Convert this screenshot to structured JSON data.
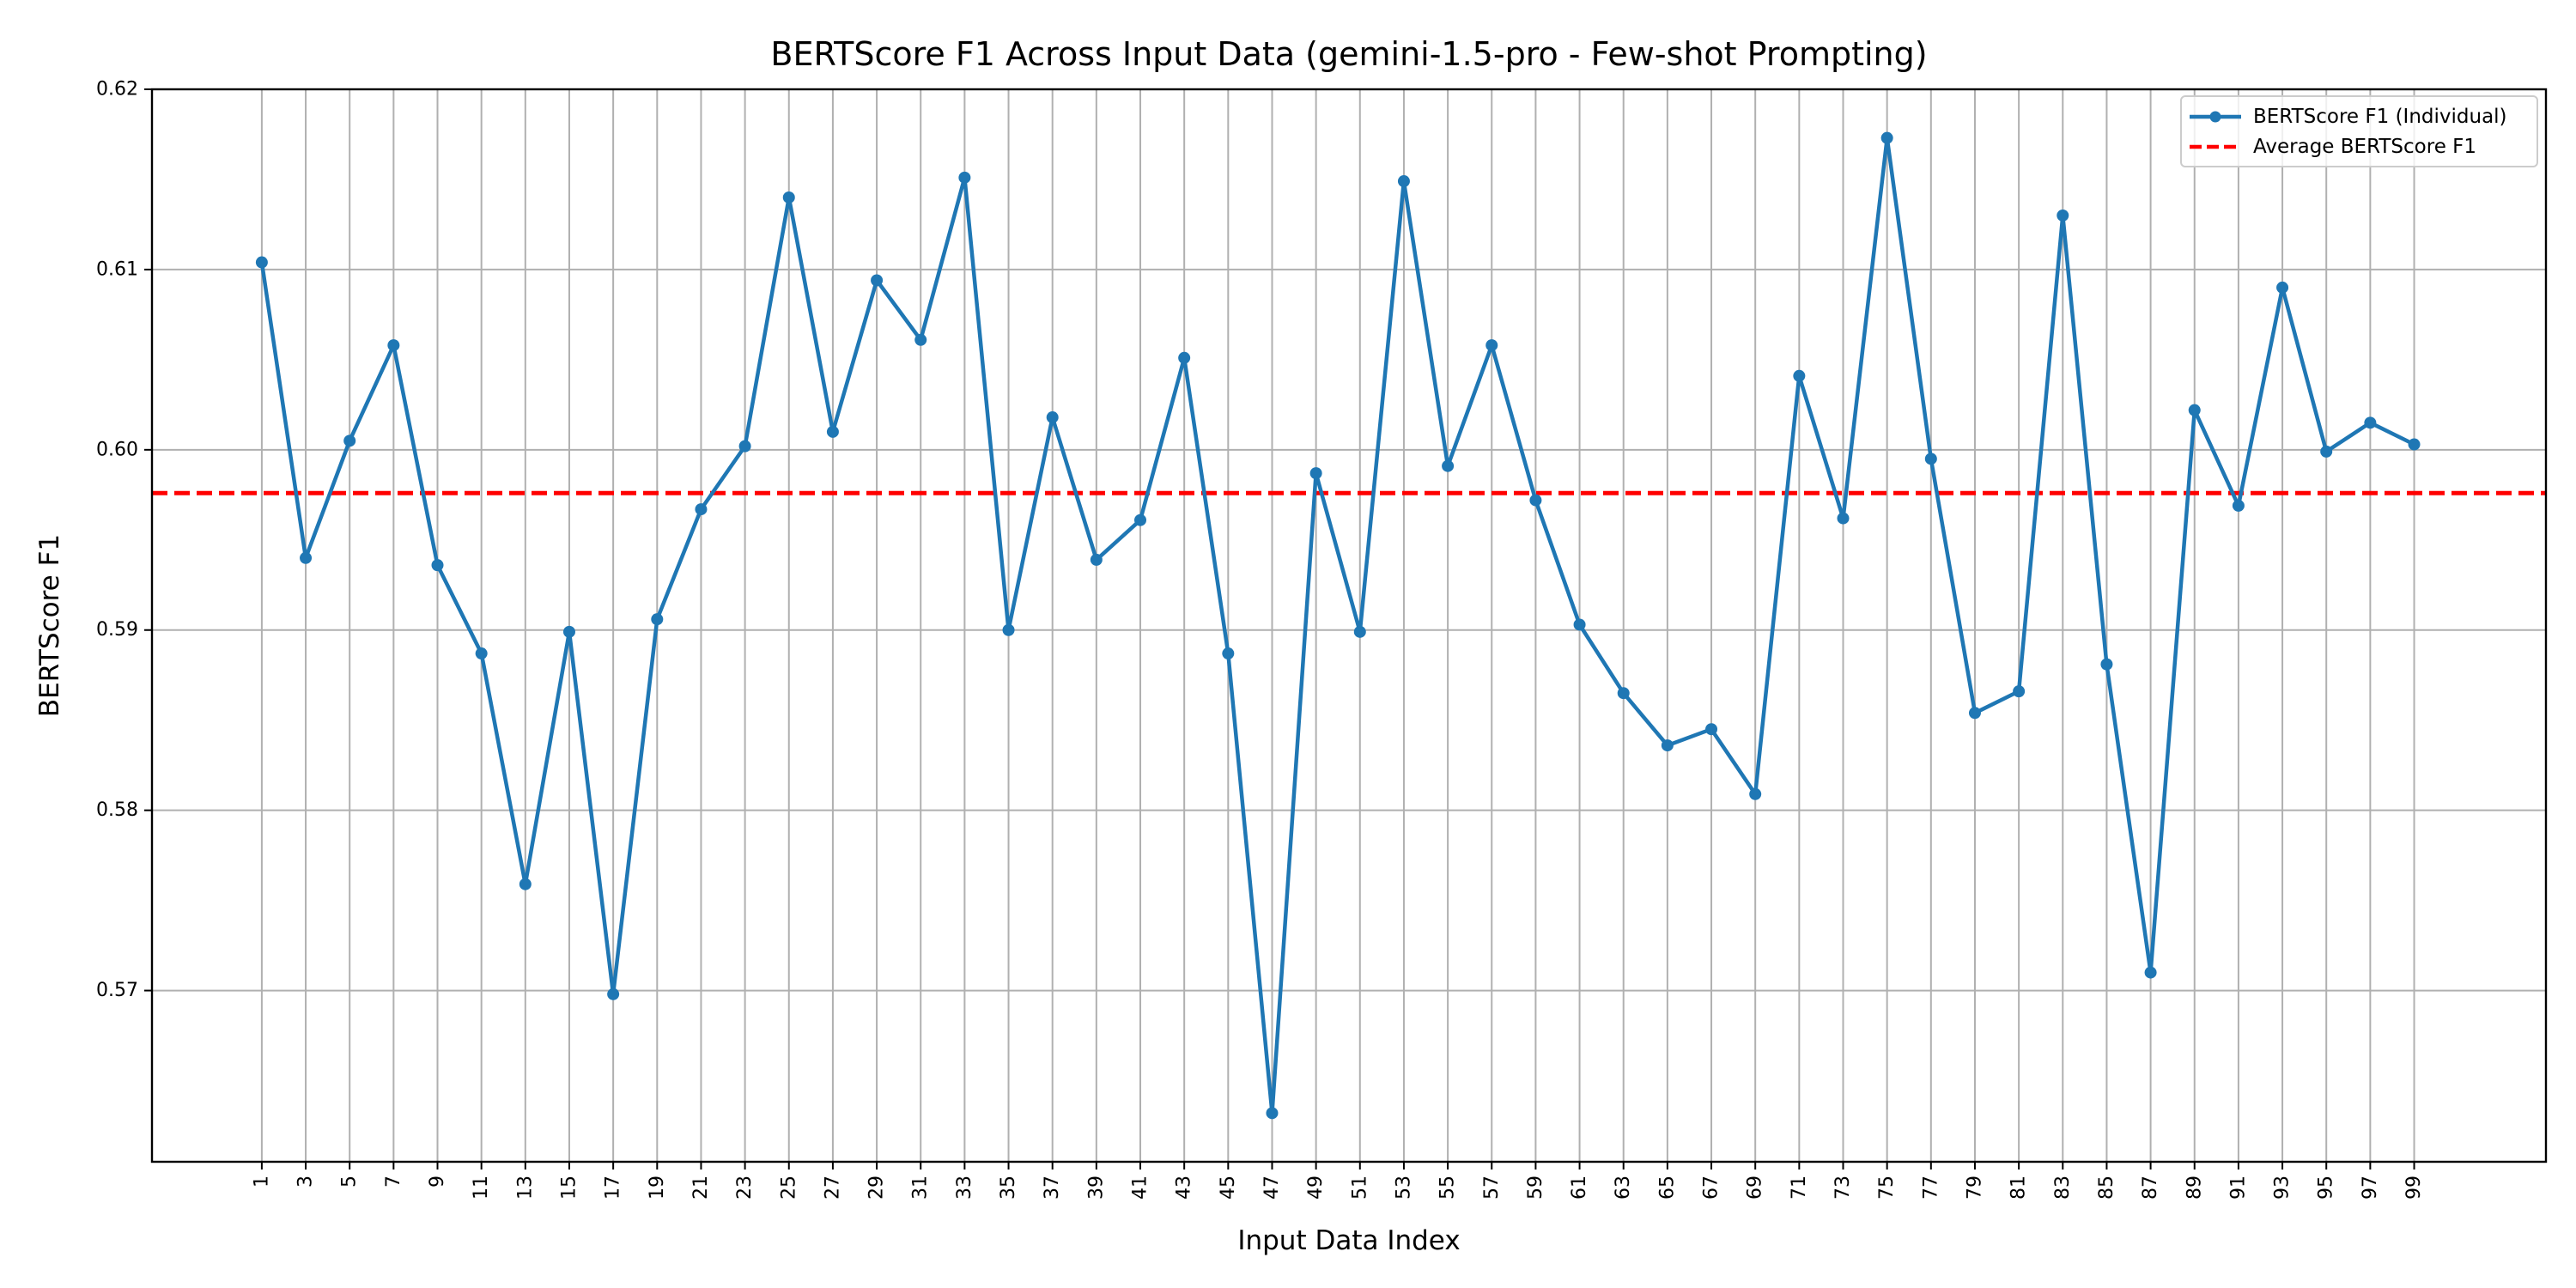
{
  "chart_data": {
    "type": "line",
    "title": "BERTScore F1 Across Input Data (gemini-1.5-pro - Few-shot Prompting)",
    "xlabel": "Input Data Index",
    "ylabel": "BERTScore F1",
    "x": [
      1,
      3,
      5,
      7,
      9,
      11,
      13,
      15,
      17,
      19,
      21,
      23,
      25,
      27,
      29,
      31,
      33,
      35,
      37,
      39,
      41,
      43,
      45,
      47,
      49,
      51,
      53,
      55,
      57,
      59,
      61,
      63,
      65,
      67,
      69,
      71,
      73,
      75,
      77,
      79,
      81,
      83,
      85,
      87,
      89,
      91,
      93,
      95,
      97,
      99
    ],
    "xlim": [
      -4,
      105
    ],
    "ylim": [
      0.5605,
      0.62
    ],
    "yticks": [
      0.57,
      0.58,
      0.59,
      0.6,
      0.61,
      0.62
    ],
    "ytick_labels": [
      "0.57",
      "0.58",
      "0.59",
      "0.60",
      "0.61",
      "0.62"
    ],
    "grid": true,
    "legend_position": "top-right",
    "series": [
      {
        "name": "BERTScore F1 (Individual)",
        "style": "line-with-markers",
        "color": "#1f77b4",
        "values": [
          0.6104,
          0.594,
          0.6005,
          0.6058,
          0.5936,
          0.5887,
          0.5759,
          0.5899,
          0.5698,
          0.5906,
          0.5967,
          0.6002,
          0.614,
          0.601,
          0.6094,
          0.6061,
          0.6151,
          0.59,
          0.6018,
          0.5939,
          0.5961,
          0.6051,
          0.5887,
          0.5632,
          0.5987,
          0.5899,
          0.6149,
          0.5991,
          0.6058,
          0.5972,
          0.5903,
          0.5865,
          0.5836,
          0.5845,
          0.5809,
          0.6041,
          0.5962,
          0.6173,
          0.5995,
          0.5854,
          0.5866,
          0.613,
          0.5881,
          0.571,
          0.6022,
          0.5969,
          0.609,
          0.5999,
          0.6015,
          0.6003
        ]
      },
      {
        "name": "Average BERTScore F1",
        "style": "dashed-hline",
        "color": "#ff0000",
        "value": 0.5976
      }
    ]
  }
}
